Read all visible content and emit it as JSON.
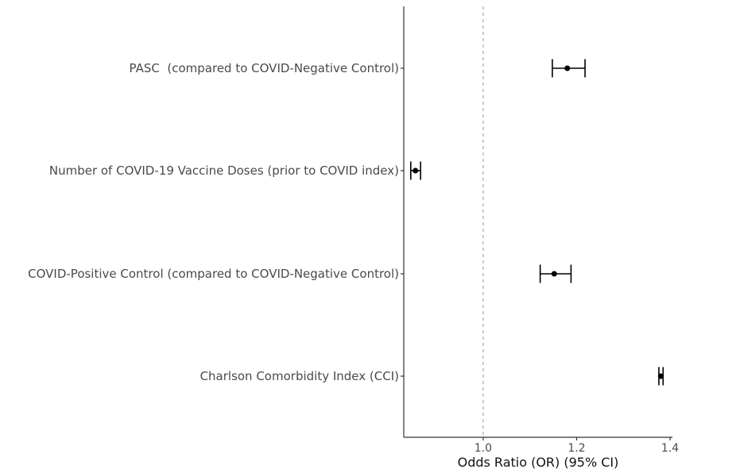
{
  "chart_data": {
    "type": "forest",
    "title": "",
    "xlabel": "Odds Ratio (OR) (95% CI)",
    "ylabel": "",
    "xlim": [
      0.83,
      1.405
    ],
    "xticks": [
      1.0,
      1.2,
      1.4
    ],
    "xtick_labels": [
      "1.0",
      "1.2",
      "1.4"
    ],
    "reference_line": 1.0,
    "grid": false,
    "rows": [
      {
        "label": "PASC  (compared to COVID-Negative Control)",
        "or": 1.18,
        "lower": 1.148,
        "upper": 1.218
      },
      {
        "label": "Number of COVID-19 Vaccine Doses (prior to COVID index)",
        "or": 0.855,
        "lower": 0.845,
        "upper": 0.866
      },
      {
        "label": "COVID-Positive Control (compared to COVID-Negative Control)",
        "or": 1.152,
        "lower": 1.122,
        "upper": 1.188
      },
      {
        "label": "Charlson Comorbidity Index (CCI)",
        "or": 1.38,
        "lower": 1.376,
        "upper": 1.385
      }
    ]
  }
}
